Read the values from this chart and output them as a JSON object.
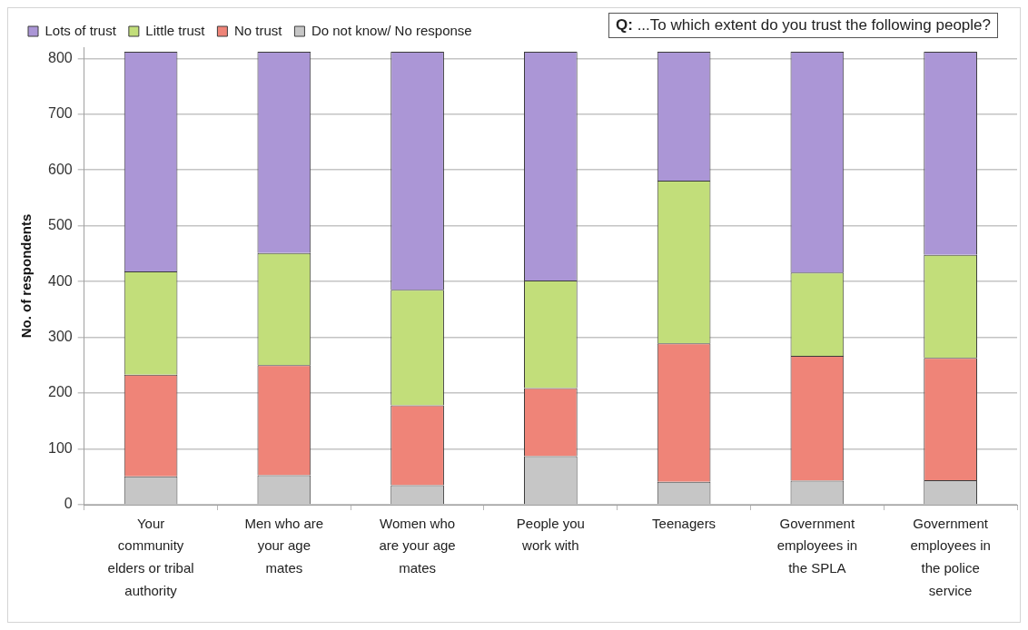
{
  "chart_data": {
    "type": "bar",
    "title": "Q: ...To which extent do you trust the following people?",
    "ylabel": "No. of respondents",
    "categories": [
      "Your community elders or tribal authority",
      "Men who are your age mates",
      "Women who are your age mates",
      "People you work with",
      "Teenagers",
      "Government employees in the SPLA",
      "Government employees in the police service"
    ],
    "series": [
      {
        "name": "Do not know/ No response",
        "color": "#c6c6c6",
        "values": [
          51,
          53,
          35,
          87,
          41,
          43,
          44
        ]
      },
      {
        "name": "No trust",
        "color": "#ef8478",
        "values": [
          182,
          197,
          143,
          122,
          248,
          224,
          219
        ]
      },
      {
        "name": "Little trust",
        "color": "#c2de7a",
        "values": [
          185,
          201,
          207,
          193,
          292,
          149,
          185
        ]
      },
      {
        "name": "Lots of trust",
        "color": "#ab96d6",
        "values": [
          394,
          361,
          427,
          410,
          231,
          396,
          364
        ]
      }
    ],
    "stacked": true,
    "ylim": [
      0,
      820
    ],
    "yticks": [
      0,
      100,
      200,
      300,
      400,
      500,
      600,
      700,
      800
    ],
    "grid": "y",
    "legend": "top left"
  }
}
